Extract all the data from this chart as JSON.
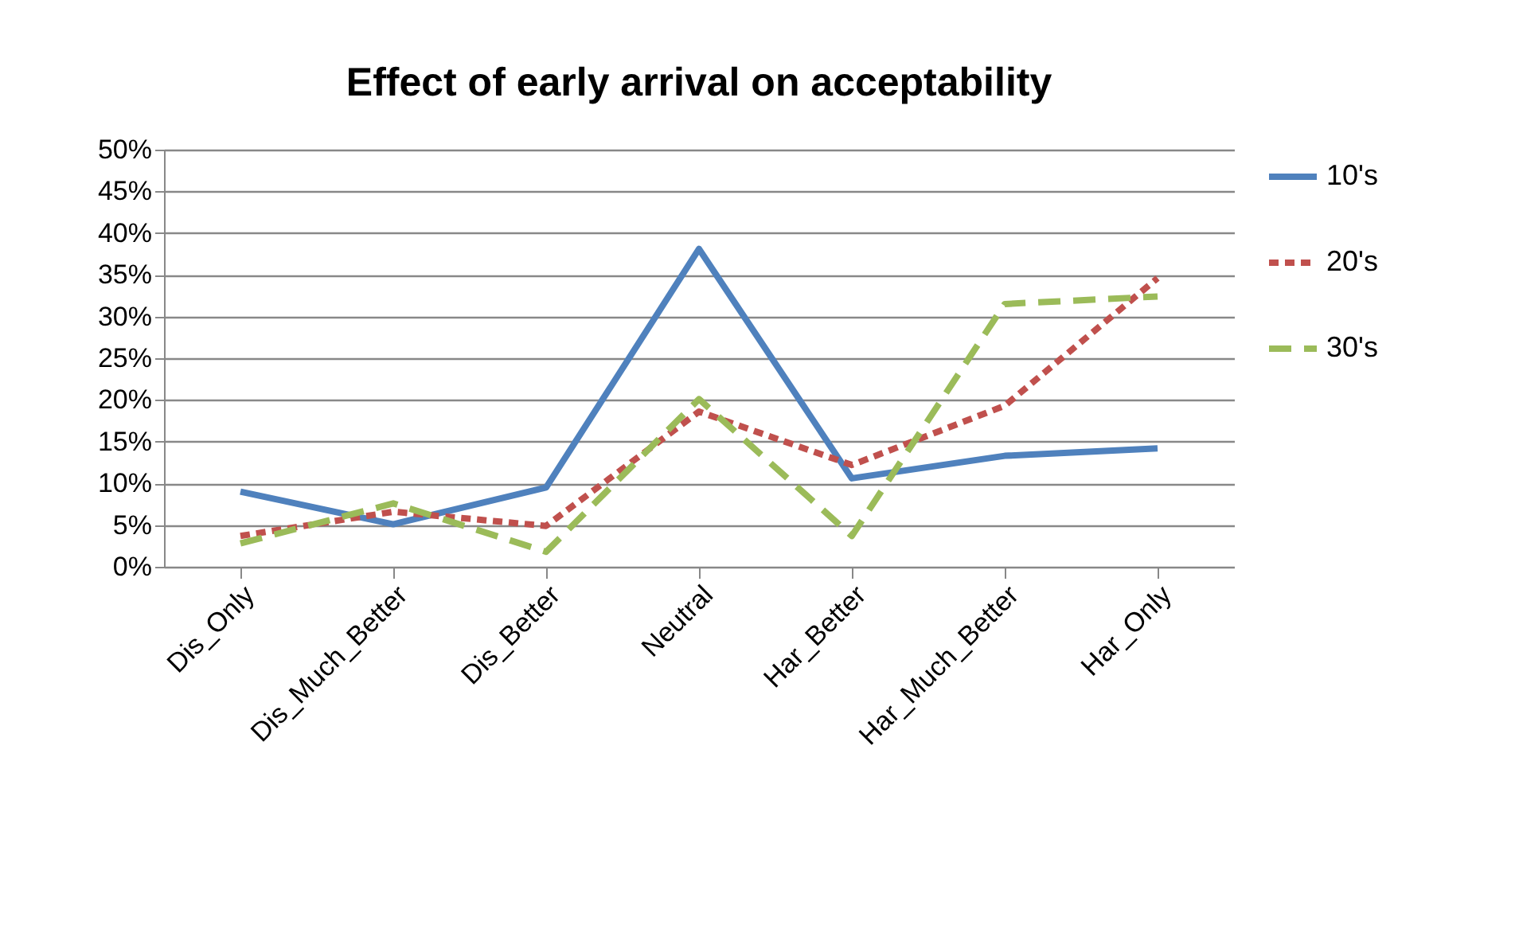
{
  "chart_data": {
    "type": "line",
    "title": "Effect of early arrival on acceptability",
    "categories": [
      "Dis_Only",
      "Dis_Much_Better",
      "Dis_Better",
      "Neutral",
      "Har_Better",
      "Har_Much_Better",
      "Har_Only"
    ],
    "series": [
      {
        "name": "10's",
        "color": "#4f81bd",
        "line_style": "solid",
        "values": [
          9.0,
          5.1,
          9.5,
          38.1,
          10.6,
          13.3,
          14.2
        ]
      },
      {
        "name": "20's",
        "color": "#c0504d",
        "line_style": "dotted",
        "values": [
          3.7,
          6.6,
          4.9,
          18.6,
          12.2,
          19.3,
          34.6
        ]
      },
      {
        "name": "30's",
        "color": "#9bbb59",
        "line_style": "dashed",
        "values": [
          2.8,
          7.6,
          1.8,
          20.1,
          3.7,
          31.5,
          32.4
        ]
      }
    ],
    "ylim": [
      0,
      50
    ],
    "yticks": [
      {
        "value": 0,
        "label": "0%"
      },
      {
        "value": 5,
        "label": "5%"
      },
      {
        "value": 10,
        "label": "10%"
      },
      {
        "value": 15,
        "label": "15%"
      },
      {
        "value": 20,
        "label": "20%"
      },
      {
        "value": 25,
        "label": "25%"
      },
      {
        "value": 30,
        "label": "30%"
      },
      {
        "value": 35,
        "label": "35%"
      },
      {
        "value": 40,
        "label": "40%"
      },
      {
        "value": 45,
        "label": "45%"
      },
      {
        "value": 50,
        "label": "50%"
      }
    ],
    "grid": "y",
    "legend": "right",
    "marker": "none"
  }
}
